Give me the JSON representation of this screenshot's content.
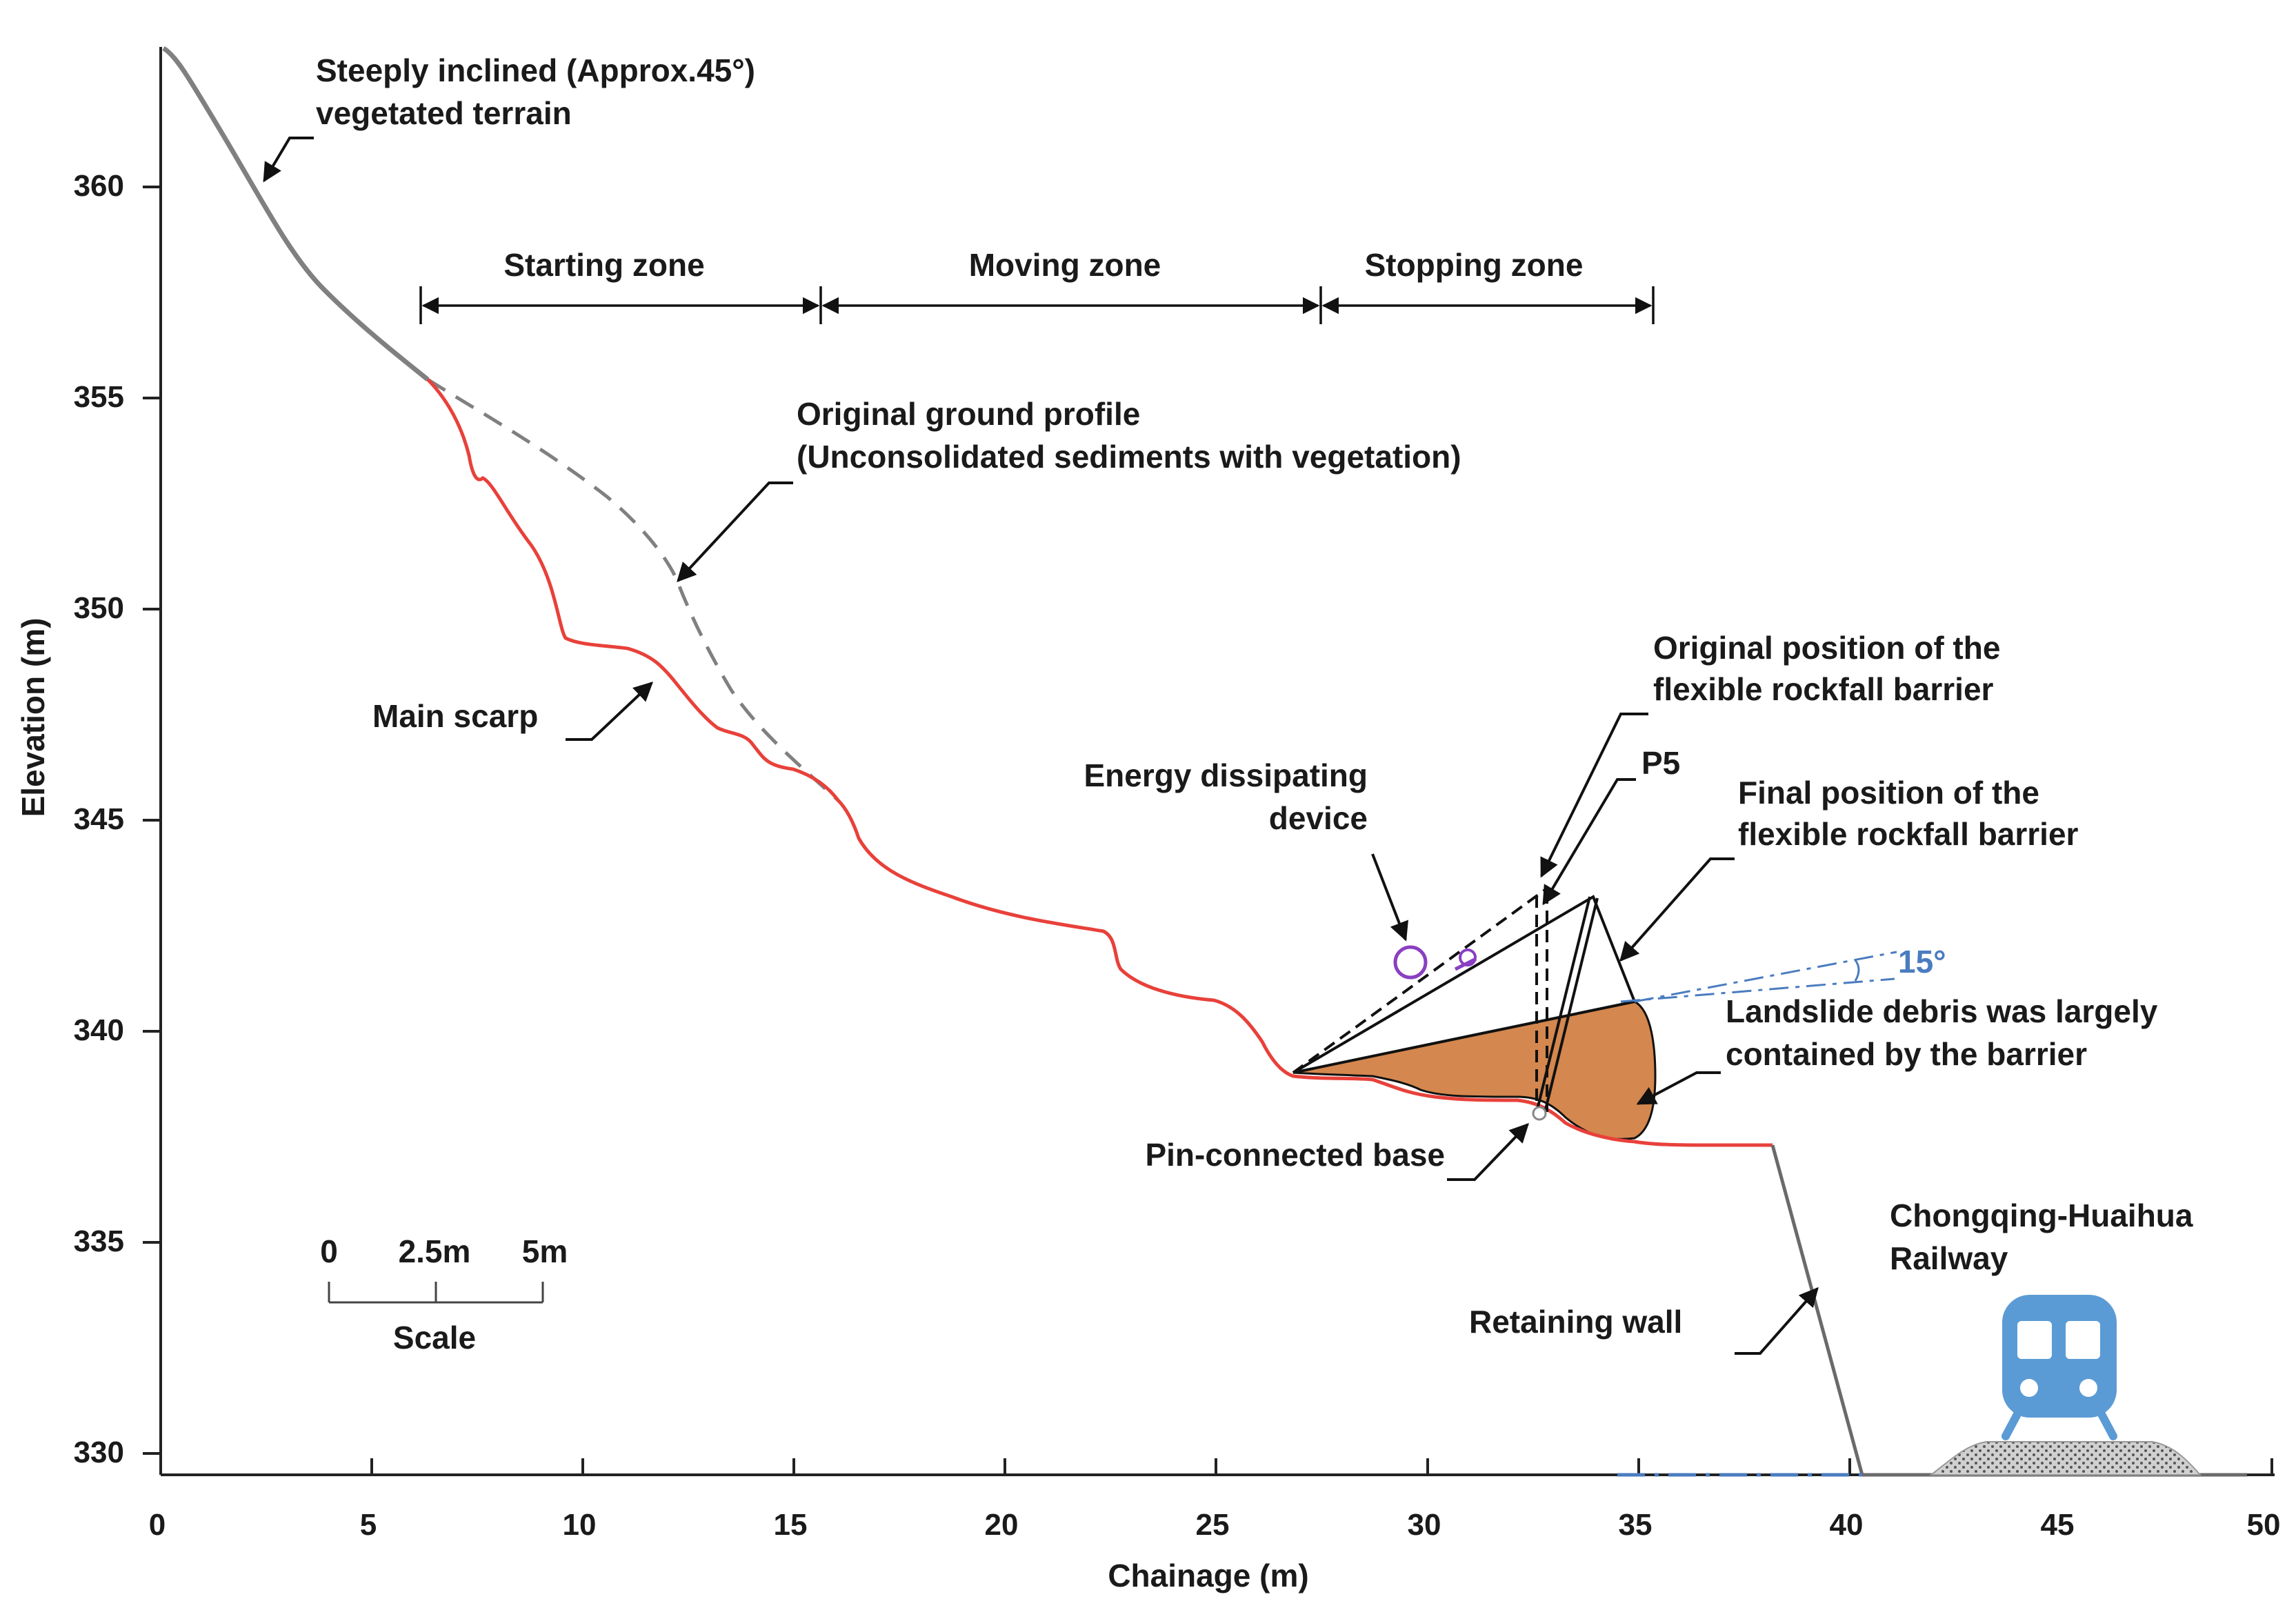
{
  "axes": {
    "x_title": "Chainage (m)",
    "y_title": "Elevation (m)",
    "x_ticks": [
      "0",
      "5",
      "10",
      "15",
      "20",
      "25",
      "30",
      "35",
      "40",
      "45",
      "50"
    ],
    "y_ticks": [
      "330",
      "335",
      "340",
      "345",
      "350",
      "355",
      "360"
    ],
    "xlim": [
      0,
      50
    ],
    "ylim": [
      329.5,
      363.5
    ]
  },
  "zones": {
    "starting": "Starting zone",
    "moving": "Moving zone",
    "stopping": "Stopping zone"
  },
  "labels": {
    "terrain_line1": "Steeply inclined (Approx.45°)",
    "terrain_line2": "vegetated terrain",
    "profile_line1": "Original ground profile",
    "profile_line2": "(Unconsolidated sediments with vegetation)",
    "main_scarp": "Main scarp",
    "orig_barrier_line1": "Original position of the",
    "orig_barrier_line2": "flexible rockfall barrier",
    "p5": "P5",
    "final_barrier_line1": "Final position of the",
    "final_barrier_line2": "flexible rockfall barrier",
    "energy_line1": "Energy dissipating",
    "energy_line2": "device",
    "angle": "15°",
    "debris_line1": "Landslide debris was largely",
    "debris_line2": "contained by the barrier",
    "pin_base": "Pin-connected base",
    "railway_line1": "Chongqing-Huaihua",
    "railway_line2": "Railway",
    "retaining_wall": "Retaining wall"
  },
  "scale_bar": {
    "ticks": [
      "0",
      "2.5m",
      "5m"
    ],
    "title": "Scale"
  },
  "colors": {
    "slip_surface": "#e8413a",
    "original_ground": "#808080",
    "debris": "#d4874e",
    "blue": "#4a7cc0",
    "purple": "#8a3fc2",
    "train": "#5b9bd5"
  }
}
